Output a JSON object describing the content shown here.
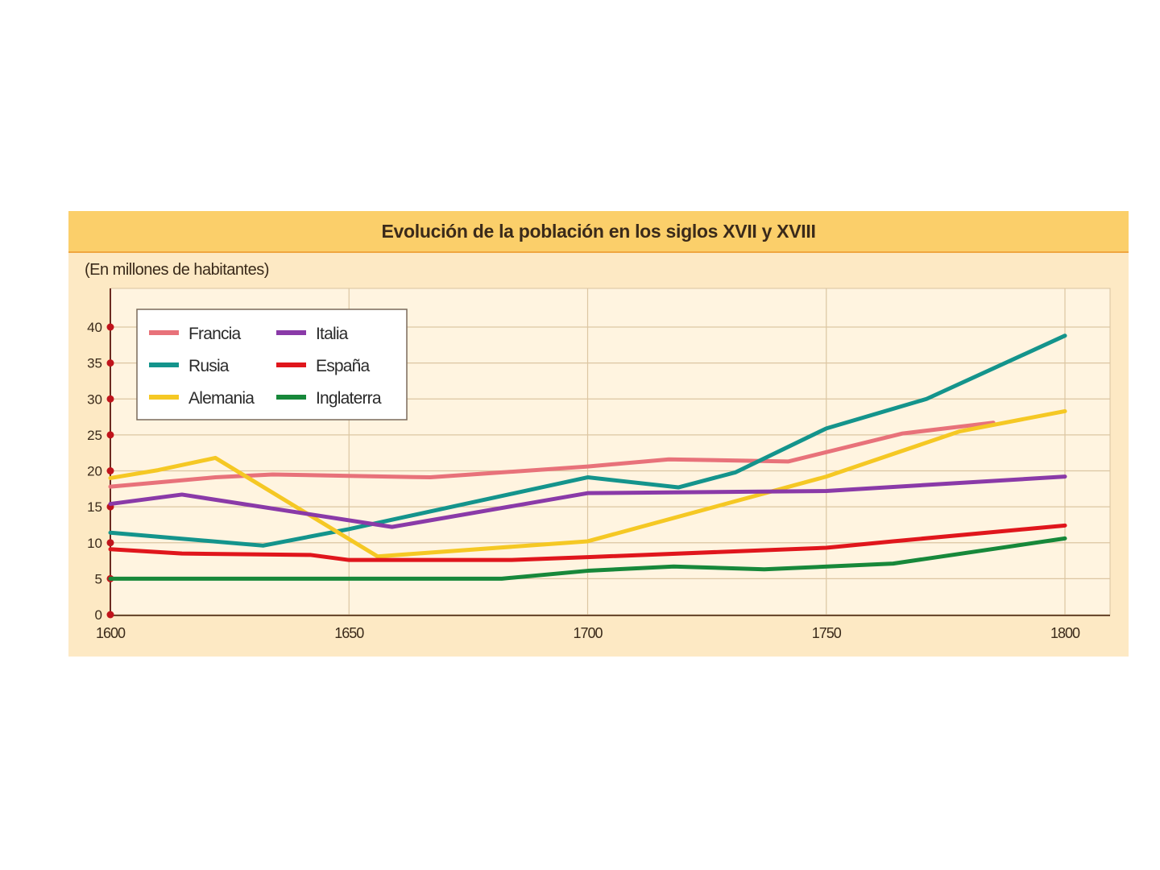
{
  "chart_data": {
    "type": "line",
    "title": "Evolución de la población en los siglos XVII y XVIII",
    "subtitle": "(En millones de habitantes)",
    "xlim": [
      1600,
      1800
    ],
    "ylim": [
      0,
      40
    ],
    "x_ticks": [
      "1600",
      "1650",
      "1700",
      "1750",
      "1800"
    ],
    "y_ticks": [
      "0",
      "5",
      "10",
      "15",
      "20",
      "25",
      "30",
      "35",
      "40"
    ],
    "grid": true,
    "legend_position": "top-left",
    "series": [
      {
        "name": "Francia",
        "color": "#e8727a",
        "points": [
          [
            1600,
            17.8
          ],
          [
            1622,
            19.1
          ],
          [
            1634,
            19.5
          ],
          [
            1650,
            19.3
          ],
          [
            1667,
            19.1
          ],
          [
            1700,
            20.6
          ],
          [
            1717,
            21.6
          ],
          [
            1742,
            21.3
          ],
          [
            1766,
            25.2
          ],
          [
            1785,
            26.7
          ]
        ]
      },
      {
        "name": "Rusia",
        "color": "#14948c",
        "points": [
          [
            1600,
            11.4
          ],
          [
            1632,
            9.6
          ],
          [
            1650,
            11.9
          ],
          [
            1700,
            19.1
          ],
          [
            1719,
            17.7
          ],
          [
            1731,
            19.8
          ],
          [
            1750,
            25.9
          ],
          [
            1771,
            30.0
          ],
          [
            1800,
            38.8
          ]
        ]
      },
      {
        "name": "Alemania",
        "color": "#f5c824",
        "points": [
          [
            1600,
            19.0
          ],
          [
            1610,
            20.1
          ],
          [
            1622,
            21.8
          ],
          [
            1656,
            8.1
          ],
          [
            1700,
            10.2
          ],
          [
            1750,
            19.2
          ],
          [
            1778,
            25.5
          ],
          [
            1800,
            28.3
          ]
        ]
      },
      {
        "name": "Italia",
        "color": "#8a3aa8",
        "points": [
          [
            1600,
            15.4
          ],
          [
            1615,
            16.7
          ],
          [
            1659,
            12.2
          ],
          [
            1700,
            16.9
          ],
          [
            1750,
            17.2
          ],
          [
            1800,
            19.2
          ]
        ]
      },
      {
        "name": "España",
        "color": "#e0161c",
        "points": [
          [
            1600,
            9.1
          ],
          [
            1615,
            8.5
          ],
          [
            1642,
            8.3
          ],
          [
            1650,
            7.6
          ],
          [
            1684,
            7.6
          ],
          [
            1700,
            8.0
          ],
          [
            1750,
            9.3
          ],
          [
            1764,
            10.2
          ],
          [
            1800,
            12.4
          ]
        ]
      },
      {
        "name": "Inglaterra",
        "color": "#17883a",
        "points": [
          [
            1600,
            5.0
          ],
          [
            1650,
            5.0
          ],
          [
            1682,
            5.0
          ],
          [
            1700,
            6.1
          ],
          [
            1718,
            6.7
          ],
          [
            1737,
            6.3
          ],
          [
            1764,
            7.1
          ],
          [
            1800,
            10.6
          ]
        ]
      }
    ]
  }
}
